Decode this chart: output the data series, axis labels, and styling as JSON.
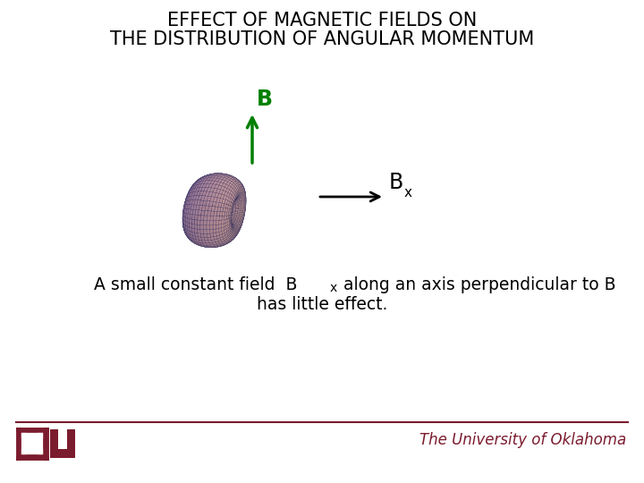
{
  "title_line1": "EFFECT OF MAGNETIC FIELDS ON",
  "title_line2": "THE DISTRIBUTION OF ANGULAR MOMENTUM",
  "label_B": "B",
  "label_Bx_main": "B",
  "label_Bx_sub": "x",
  "desc_part1": "A small constant field  B",
  "desc_sub": "x",
  "desc_part2": " along an axis perpendicular to B",
  "desc_line2": "has little effect.",
  "footer": "The University of Oklahoma",
  "bg_color": "#ffffff",
  "title_color": "#000000",
  "arrow_B_color": "#008000",
  "label_B_color": "#008000",
  "arrow_Bx_color": "#000000",
  "label_Bx_color": "#000000",
  "footer_color": "#7b1c2e",
  "line_color": "#7b1c2e",
  "logo_color": "#7b1c2e",
  "title_fontsize": 15,
  "desc_fontsize": 13.5,
  "footer_fontsize": 12
}
